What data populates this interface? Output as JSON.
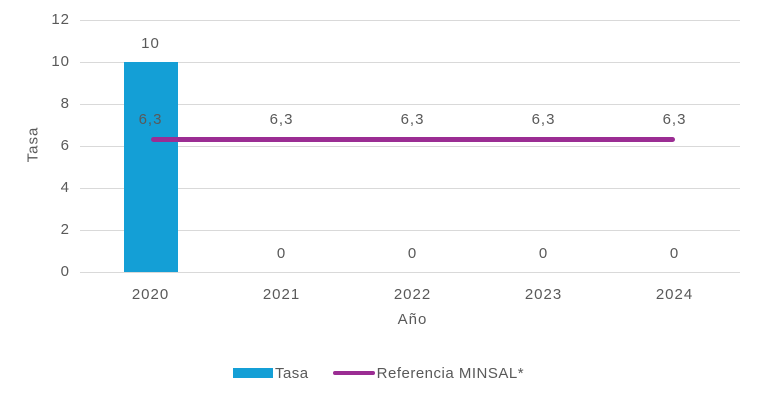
{
  "chart_data": {
    "type": "bar",
    "title": "",
    "categories": [
      "2020",
      "2021",
      "2022",
      "2023",
      "2024"
    ],
    "series": [
      {
        "name": "Tasa",
        "type": "bar",
        "color": "#149FD6",
        "values": [
          10,
          0,
          0,
          0,
          0
        ],
        "labels": [
          "10",
          "0",
          "0",
          "0",
          "0"
        ]
      },
      {
        "name": "Referencia MINSAL*",
        "type": "line",
        "color": "#9B2D93",
        "values": [
          6.3,
          6.3,
          6.3,
          6.3,
          6.3
        ],
        "labels": [
          "6,3",
          "6,3",
          "6,3",
          "6,3",
          "6,3"
        ]
      }
    ],
    "xlabel": "Año",
    "ylabel": "Tasa",
    "ylim": [
      0,
      12
    ],
    "yticks": [
      0,
      2,
      4,
      6,
      8,
      10,
      12
    ],
    "grid": true,
    "legend_position": "bottom",
    "colors": {
      "text": "#595959",
      "gridline": "#D9D9D9",
      "background": "#FFFFFF"
    }
  }
}
